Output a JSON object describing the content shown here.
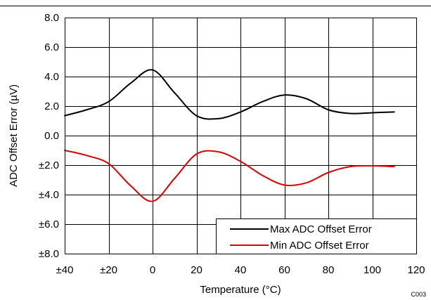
{
  "chart_data": {
    "type": "line",
    "title": "",
    "xlabel": "Temperature (°C)",
    "ylabel": "ADC Offset Error (µV)",
    "xlim": [
      -40,
      120
    ],
    "ylim": [
      -8,
      8
    ],
    "x_ticks": [
      -40,
      -20,
      0,
      20,
      40,
      60,
      80,
      100,
      120
    ],
    "x_tick_labels": [
      "±40",
      "±20",
      "0",
      "20",
      "40",
      "60",
      "80",
      "100",
      "120"
    ],
    "y_ticks": [
      8,
      6,
      4,
      2,
      0,
      -2,
      -4,
      -6,
      -8
    ],
    "y_tick_labels": [
      "8.0",
      "6.0",
      "4.0",
      "2.0",
      "0.0",
      "±2.0",
      "±4.0",
      "±6.0",
      "±8.0"
    ],
    "grid": true,
    "legend_position": "bottom-right",
    "corner_code": "C003",
    "series": [
      {
        "name": "Max ADC Offset Error",
        "color": "#000000",
        "x": [
          -40,
          -30,
          -20,
          -10,
          0,
          10,
          20,
          30,
          40,
          50,
          60,
          70,
          80,
          90,
          100,
          110
        ],
        "y": [
          1.35,
          1.75,
          2.3,
          3.55,
          4.45,
          2.9,
          1.35,
          1.15,
          1.6,
          2.3,
          2.75,
          2.5,
          1.75,
          1.5,
          1.55,
          1.6
        ]
      },
      {
        "name": "Min ADC Offset Error",
        "color": "#e00000",
        "x": [
          -40,
          -30,
          -20,
          -10,
          0,
          10,
          20,
          30,
          40,
          50,
          60,
          70,
          80,
          90,
          100,
          110
        ],
        "y": [
          -1.0,
          -1.35,
          -1.9,
          -3.4,
          -4.45,
          -2.9,
          -1.25,
          -1.1,
          -1.75,
          -2.7,
          -3.35,
          -3.2,
          -2.5,
          -2.1,
          -2.05,
          -2.1
        ]
      }
    ]
  }
}
